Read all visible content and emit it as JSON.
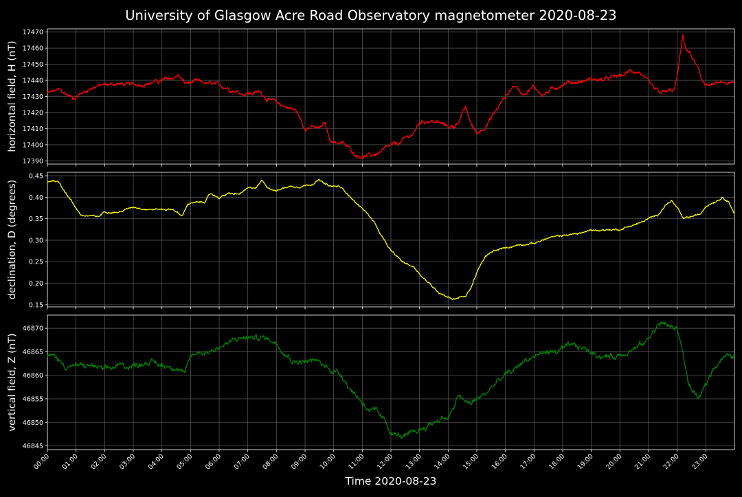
{
  "title": "University of Glasgow Acre Road Observatory magnetometer 2020-08-23",
  "xlabel": "Time 2020-08-23",
  "x_ticks": [
    "00:00",
    "01:00",
    "02:00",
    "03:00",
    "04:00",
    "05:00",
    "06:00",
    "07:00",
    "08:00",
    "09:00",
    "10:00",
    "11:00",
    "12:00",
    "13:00",
    "14:00",
    "15:00",
    "16:00",
    "17:00",
    "18:00",
    "19:00",
    "20:00",
    "21:00",
    "22:00",
    "23:00"
  ],
  "colors": {
    "background": "#000000",
    "grid": "#555555",
    "H": "#ff0000",
    "D": "#ffff00",
    "Z": "#008000"
  },
  "chart_data": [
    {
      "type": "line",
      "ylabel": "horizontal field, H (nT)",
      "xlim": [
        0,
        24
      ],
      "ylim": [
        17388,
        17472
      ],
      "yticks": [
        17390,
        17400,
        17410,
        17420,
        17430,
        17440,
        17450,
        17460,
        17470
      ],
      "grid": true,
      "series": [
        {
          "color": "#ff0000",
          "noise": 1.6,
          "x": [
            0,
            0.4,
            0.9,
            1.2,
            1.6,
            2.0,
            2.4,
            2.9,
            3.4,
            3.8,
            4.3,
            4.6,
            4.8,
            5.2,
            5.6,
            6.2,
            6.8,
            7.2,
            7.45,
            7.7,
            8.0,
            8.3,
            8.7,
            8.95,
            9.2,
            9.5,
            9.7,
            9.85,
            10.0,
            10.3,
            10.6,
            10.75,
            11.0,
            11.3,
            11.7,
            12.0,
            12.3,
            12.6,
            12.8,
            13.0,
            13.3,
            13.6,
            13.9,
            14.2,
            14.4,
            14.6,
            14.8,
            15.0,
            15.2,
            15.4,
            15.7,
            16.0,
            16.3,
            16.6,
            16.8,
            17.0,
            17.3,
            17.6,
            17.9,
            18.2,
            18.6,
            19.0,
            19.4,
            19.8,
            20.1,
            20.4,
            20.7,
            20.9,
            21.2,
            21.4,
            21.7,
            21.9,
            22.0,
            22.1,
            22.2,
            22.3,
            22.5,
            22.7,
            22.85,
            23.1,
            23.5,
            24
          ],
          "y": [
            17432,
            17434,
            17429,
            17432,
            17436,
            17437,
            17438,
            17437,
            17438,
            17439,
            17441,
            17443,
            17438,
            17439,
            17438,
            17436,
            17432,
            17432,
            17433,
            17428,
            17426,
            17424,
            17421,
            17411,
            17411,
            17410,
            17413,
            17404,
            17402,
            17401,
            17397,
            17394,
            17393,
            17393,
            17396,
            17399,
            17401,
            17405,
            17407,
            17414,
            17415,
            17414,
            17412,
            17411,
            17416,
            17423,
            17413,
            17407,
            17410,
            17414,
            17422,
            17430,
            17437,
            17432,
            17434,
            17436,
            17431,
            17434,
            17437,
            17439,
            17439,
            17441,
            17440,
            17442,
            17443,
            17446,
            17445,
            17440,
            17434,
            17432,
            17433,
            17434,
            17442,
            17455,
            17467,
            17460,
            17455,
            17448,
            17440,
            17437,
            17438,
            17438
          ]
        }
      ]
    },
    {
      "type": "line",
      "ylabel": "declination, D (degrees)",
      "xlim": [
        0,
        24
      ],
      "ylim": [
        0.145,
        0.458
      ],
      "yticks": [
        0.15,
        0.2,
        0.25,
        0.3,
        0.35,
        0.4,
        0.45
      ],
      "grid": true,
      "series": [
        {
          "color": "#ffff00",
          "noise": 0.0025,
          "x": [
            0,
            0.2,
            0.4,
            0.6,
            0.8,
            1.0,
            1.2,
            1.5,
            1.8,
            2.0,
            2.5,
            3.0,
            3.5,
            4.0,
            4.4,
            4.7,
            4.9,
            5.2,
            5.5,
            5.7,
            6.0,
            6.3,
            6.7,
            7.0,
            7.3,
            7.5,
            7.7,
            8.0,
            8.4,
            8.8,
            9.2,
            9.5,
            9.7,
            9.9,
            10.2,
            10.5,
            10.8,
            11.1,
            11.4,
            11.6,
            11.8,
            12.0,
            12.4,
            12.8,
            13.1,
            13.4,
            13.7,
            14.0,
            14.2,
            14.4,
            14.6,
            14.8,
            15.0,
            15.3,
            15.6,
            16.0,
            16.5,
            17.0,
            17.5,
            18.0,
            18.5,
            19.0,
            19.5,
            20.0,
            20.3,
            20.7,
            21.0,
            21.3,
            21.6,
            21.8,
            22.0,
            22.2,
            22.5,
            22.8,
            23.0,
            23.3,
            23.6,
            23.8,
            24
          ],
          "y": [
            0.435,
            0.44,
            0.435,
            0.415,
            0.395,
            0.375,
            0.357,
            0.356,
            0.355,
            0.367,
            0.365,
            0.378,
            0.372,
            0.372,
            0.372,
            0.355,
            0.385,
            0.387,
            0.39,
            0.408,
            0.399,
            0.408,
            0.407,
            0.42,
            0.423,
            0.44,
            0.423,
            0.415,
            0.425,
            0.425,
            0.43,
            0.44,
            0.43,
            0.425,
            0.425,
            0.408,
            0.385,
            0.368,
            0.345,
            0.318,
            0.295,
            0.275,
            0.25,
            0.238,
            0.215,
            0.195,
            0.178,
            0.168,
            0.163,
            0.168,
            0.168,
            0.19,
            0.225,
            0.262,
            0.275,
            0.282,
            0.29,
            0.293,
            0.305,
            0.311,
            0.315,
            0.323,
            0.324,
            0.325,
            0.332,
            0.34,
            0.35,
            0.358,
            0.382,
            0.392,
            0.375,
            0.35,
            0.355,
            0.36,
            0.38,
            0.39,
            0.4,
            0.39,
            0.362
          ]
        }
      ]
    },
    {
      "type": "line",
      "ylabel": "vertical field, Z (nT)",
      "xlim": [
        0,
        24
      ],
      "ylim": [
        46844.2,
        46872.8
      ],
      "yticks": [
        46845,
        46850,
        46855,
        46860,
        46865,
        46870
      ],
      "grid": true,
      "series": [
        {
          "color": "#008000",
          "noise": 0.75,
          "x": [
            0,
            0.3,
            0.6,
            0.9,
            1.2,
            1.6,
            2.0,
            2.5,
            3.0,
            3.5,
            4.0,
            4.4,
            4.7,
            4.8,
            5.0,
            5.3,
            5.6,
            6.0,
            6.4,
            6.8,
            7.2,
            7.6,
            8.0,
            8.3,
            8.6,
            9.0,
            9.4,
            9.7,
            10.0,
            10.3,
            10.6,
            10.9,
            11.2,
            11.5,
            11.8,
            12.0,
            12.3,
            12.6,
            12.9,
            13.2,
            13.5,
            13.8,
            14.0,
            14.2,
            14.4,
            14.6,
            14.8,
            15.0,
            15.3,
            15.6,
            16.0,
            16.3,
            16.6,
            17.0,
            17.4,
            17.8,
            18.2,
            18.6,
            19.0,
            19.4,
            19.8,
            20.2,
            20.6,
            20.9,
            21.1,
            21.4,
            21.6,
            21.8,
            22.0,
            22.2,
            22.4,
            22.6,
            22.8,
            23.0,
            23.3,
            23.6,
            24
          ],
          "y": [
            46864,
            46864,
            46862,
            46862,
            46862,
            46862,
            46861,
            46862,
            46862,
            46863,
            46862,
            46862,
            46861,
            46860,
            46864,
            46865,
            46865,
            46866,
            46867,
            46868,
            46868,
            46868,
            46867,
            46865,
            46863,
            46863,
            46863,
            46862,
            46861,
            46860,
            46857,
            46855,
            46853,
            46852,
            46850,
            46848,
            46847,
            46847,
            46848,
            46849,
            46850,
            46851,
            46851,
            46853,
            46856,
            46854,
            46854,
            46855,
            46856,
            46858,
            46860,
            46861,
            46863,
            46864,
            46865,
            46865,
            46866,
            46866,
            46865,
            46864,
            46864,
            46865,
            46866,
            46867,
            46869,
            46871,
            46871,
            46870,
            46870,
            46865,
            46858,
            46856,
            46855,
            46858,
            46862,
            46864,
            46864
          ]
        }
      ]
    }
  ]
}
